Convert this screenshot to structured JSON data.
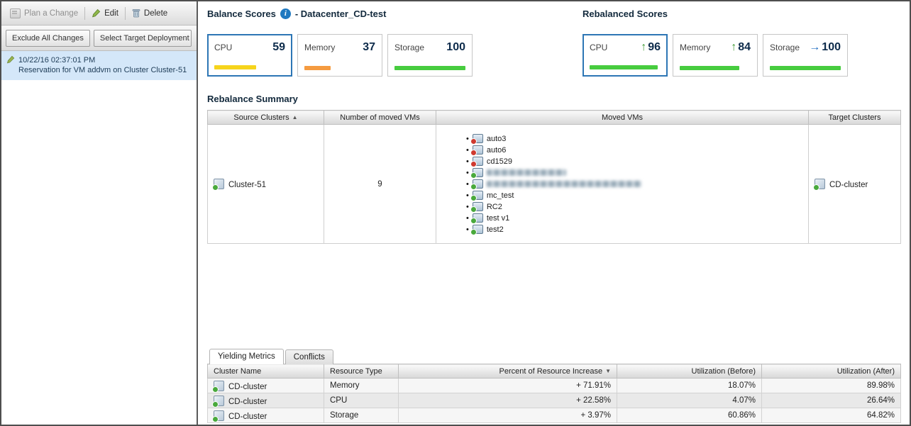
{
  "icons": {
    "sort_asc": "▲",
    "sort_desc": "▼",
    "bullet": "•",
    "info": "i"
  },
  "left_panel": {
    "toolbar": {
      "plan": "Plan a Change",
      "edit": "Edit",
      "delete": "Delete"
    },
    "filters": {
      "exclude": "Exclude All Changes",
      "select_target": "Select Target Deployment Da"
    },
    "change_item": {
      "timestamp": "10/22/16 02:37:01 PM",
      "description": "Reservation for VM addvm on Cluster Cluster-51"
    }
  },
  "balance_scores": {
    "title": "Balance Scores",
    "subtitle": "- Datacenter_CD-test",
    "cards": [
      {
        "label": "CPU",
        "value": "59",
        "pct": 59,
        "color": "#f6d41c",
        "selected": true
      },
      {
        "label": "Memory",
        "value": "37",
        "pct": 37,
        "color": "#f59b40",
        "selected": false
      },
      {
        "label": "Storage",
        "value": "100",
        "pct": 100,
        "color": "#47cc3f",
        "selected": false
      }
    ]
  },
  "rebalanced_scores": {
    "title": "Rebalanced Scores",
    "cards": [
      {
        "label": "CPU",
        "value": "96",
        "pct": 96,
        "color": "#47cc3f",
        "arrow": "↑",
        "arrow_color": "#3f9b35",
        "selected": true
      },
      {
        "label": "Memory",
        "value": "84",
        "pct": 84,
        "color": "#47cc3f",
        "arrow": "↑",
        "arrow_color": "#3f9b35",
        "selected": false
      },
      {
        "label": "Storage",
        "value": "100",
        "pct": 100,
        "color": "#47cc3f",
        "arrow": "→",
        "arrow_color": "#1d6cc0",
        "selected": false
      }
    ]
  },
  "rebalance_summary": {
    "title": "Rebalance Summary",
    "columns": {
      "source": "Source Clusters",
      "count": "Number of moved VMs",
      "moved": "Moved VMs",
      "target": "Target Clusters"
    },
    "row": {
      "source_cluster": "Cluster-51",
      "moved_count": "9",
      "target_cluster": "CD-cluster",
      "vms": [
        {
          "name": "auto3",
          "state": "error"
        },
        {
          "name": "auto6",
          "state": "error"
        },
        {
          "name": "cd1529",
          "state": "error"
        },
        {
          "name": "",
          "state": "ok",
          "redacted": true
        },
        {
          "name": "",
          "state": "ok",
          "redacted": true
        },
        {
          "name": "mc_test",
          "state": "ok"
        },
        {
          "name": "RC2",
          "state": "ok"
        },
        {
          "name": "test v1",
          "state": "ok"
        },
        {
          "name": "test2",
          "state": "ok"
        }
      ]
    }
  },
  "metrics": {
    "tabs": {
      "yielding": "Yielding Metrics",
      "conflicts": "Conflicts"
    },
    "columns": {
      "cluster": "Cluster Name",
      "resource": "Resource Type",
      "increase": "Percent of Resource Increase",
      "before": "Utilization (Before)",
      "after": "Utilization (After)"
    },
    "rows": [
      {
        "cluster": "CD-cluster",
        "resource": "Memory",
        "increase": "+ 71.91%",
        "before": "18.07%",
        "after": "89.98%"
      },
      {
        "cluster": "CD-cluster",
        "resource": "CPU",
        "increase": "+ 22.58%",
        "before": "4.07%",
        "after": "26.64%"
      },
      {
        "cluster": "CD-cluster",
        "resource": "Storage",
        "increase": "+ 3.97%",
        "before": "60.86%",
        "after": "64.82%"
      }
    ]
  }
}
